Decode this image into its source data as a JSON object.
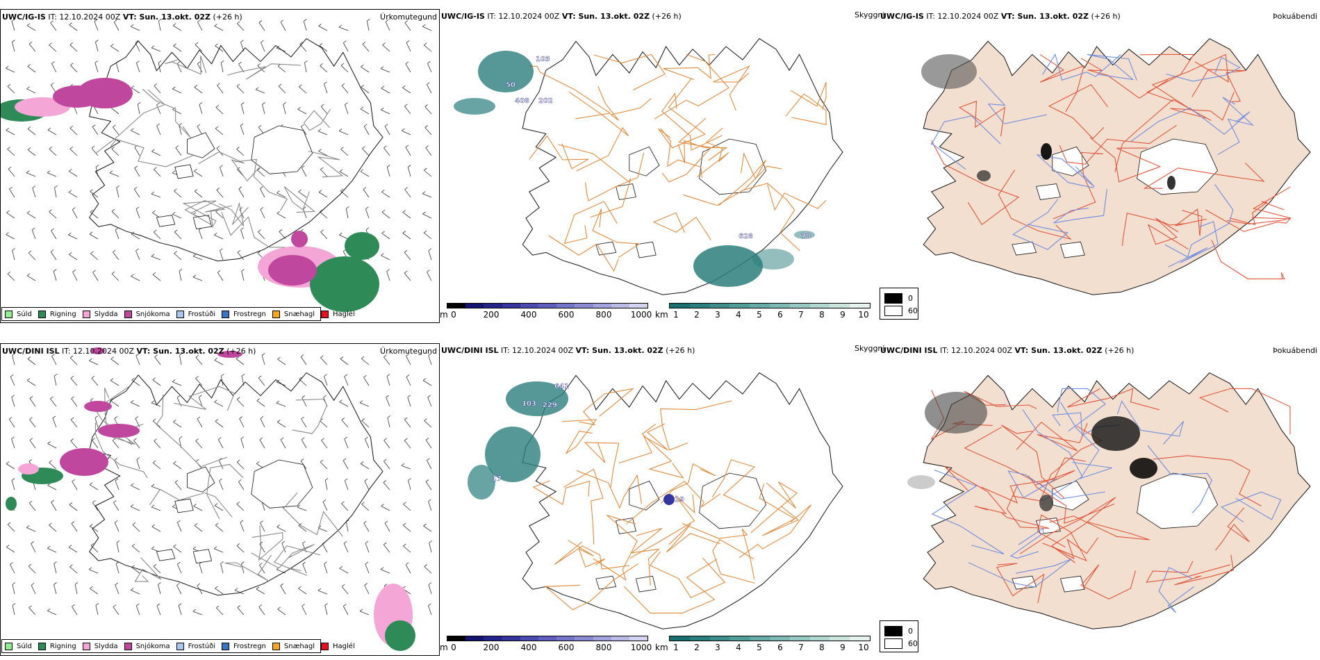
{
  "rows": [
    {
      "id": "igis",
      "precip": {
        "title_bold": "UWC/IG-IS",
        "title_it": "IT: 12.10.2024 00Z",
        "title_vt_bold": "VT: Sun. 13.okt. 02Z",
        "title_lead": "(+26 h)",
        "label": "Úrkomutegund"
      },
      "visibility": {
        "title_bold": "UWC/IG-IS",
        "title_it": "IT: 12.10.2024 00Z",
        "title_vt_bold": "VT: Sun. 13.okt. 02Z",
        "title_lead": "(+26 h)",
        "annotations": [
          "103",
          "50",
          "408",
          "202",
          "628",
          "78"
        ]
      },
      "fog": {
        "title_bold": "UWC/IG-IS",
        "title_it": "IT: 12.10.2024 00Z",
        "title_vt_bold": "VT: Sun. 13.okt. 02Z",
        "title_lead": "(+26 h)",
        "label": "Þokuábendi"
      }
    },
    {
      "id": "dini",
      "precip": {
        "title_bold": "UWC/DINI ISL",
        "title_it": "IT: 12.10.2024 00Z",
        "title_vt_bold": "VT: Sun. 13.okt. 02Z",
        "title_lead": "(+26 h)",
        "label": "Úrkomutegund"
      },
      "visibility": {
        "title_bold": "UWC/DINI ISL",
        "title_it": "IT: 12.10.2024 00Z",
        "title_vt_bold": "VT: Sun. 13.okt. 02Z",
        "title_lead": "(+26 h)",
        "annotations": [
          "641",
          "103",
          "229",
          "17",
          "19"
        ]
      },
      "fog": {
        "title_bold": "UWC/DINI ISL",
        "title_it": "IT: 12.10.2024 00Z",
        "title_vt_bold": "VT: Sun. 13.okt. 02Z",
        "title_lead": "(+26 h)",
        "label": "Þokuábendi"
      }
    }
  ],
  "visibility_label": "Skyggni",
  "precip_legend": [
    {
      "label": "Súld",
      "color": "#90ee90"
    },
    {
      "label": "Rigning",
      "color": "#2e8b57"
    },
    {
      "label": "Slydda",
      "color": "#f4a6d7"
    },
    {
      "label": "Snjókoma",
      "color": "#c0479e"
    },
    {
      "label": "Frostúði",
      "color": "#a7c7ef"
    },
    {
      "label": "Frostregn",
      "color": "#3a75c4"
    },
    {
      "label": "Snæhagl",
      "color": "#f5a623"
    },
    {
      "label": "Haglél",
      "color": "#e8101a"
    }
  ],
  "cloud_base_bar": {
    "unit": "m",
    "ticks": [
      "0",
      "200",
      "400",
      "600",
      "800",
      "1000"
    ],
    "colors": [
      "#000000",
      "#141470",
      "#23238c",
      "#3535a0",
      "#4a4ab0",
      "#5e5ebf",
      "#7474c9",
      "#8b8bd3",
      "#a2a2dd",
      "#babae7",
      "#d4d4f0"
    ]
  },
  "visibility_bar": {
    "unit": "km",
    "ticks": [
      "1",
      "2",
      "3",
      "4",
      "5",
      "6",
      "7",
      "8",
      "9",
      "10"
    ],
    "colors": [
      "#1a6e6e",
      "#2a7e7d",
      "#3c8d8b",
      "#509c99",
      "#66aba7",
      "#7dbab5",
      "#96c9c3",
      "#b0d8d1",
      "#cbe6df",
      "#e6f3ef"
    ]
  },
  "fog_key": {
    "high": "0",
    "low": "60",
    "high_color": "#000000",
    "low_color": "#ffffff"
  },
  "colors": {
    "roads_orange": "#e08a3c",
    "roads_red": "#e0553a",
    "rivers": "#6f8de0",
    "land_fog": "#f3dfd0",
    "snow_pink": "#c0479e",
    "sleet_pink": "#f4a6d7",
    "rain_green": "#2e8b57",
    "vis_teal": "#2a7e7d"
  },
  "icons": [
    "wind-barb-icon",
    "island-outline-icon",
    "fog-patch-icon"
  ]
}
